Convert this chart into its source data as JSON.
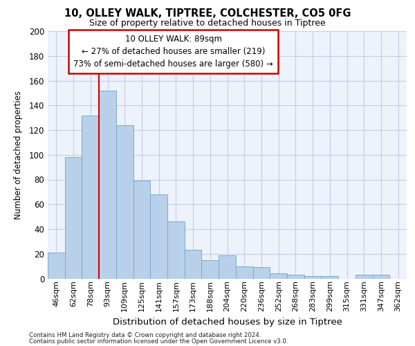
{
  "title_line1": "10, OLLEY WALK, TIPTREE, COLCHESTER, CO5 0FG",
  "title_line2": "Size of property relative to detached houses in Tiptree",
  "xlabel": "Distribution of detached houses by size in Tiptree",
  "ylabel": "Number of detached properties",
  "categories": [
    "46sqm",
    "62sqm",
    "78sqm",
    "93sqm",
    "109sqm",
    "125sqm",
    "141sqm",
    "157sqm",
    "173sqm",
    "188sqm",
    "204sqm",
    "220sqm",
    "236sqm",
    "252sqm",
    "268sqm",
    "283sqm",
    "299sqm",
    "315sqm",
    "331sqm",
    "347sqm",
    "362sqm"
  ],
  "values": [
    21,
    98,
    132,
    152,
    124,
    79,
    68,
    46,
    23,
    15,
    19,
    10,
    9,
    4,
    3,
    2,
    2,
    0,
    3,
    3,
    0
  ],
  "bar_color": "#b8d0ea",
  "bar_edge_color": "#7aaad0",
  "vline_color": "#cc0000",
  "vline_x_index": 3,
  "annotation_text": "10 OLLEY WALK: 89sqm\n← 27% of detached houses are smaller (219)\n73% of semi-detached houses are larger (580) →",
  "annotation_box_color": "#ffffff",
  "annotation_box_edge_color": "#cc0000",
  "ylim": [
    0,
    200
  ],
  "yticks": [
    0,
    20,
    40,
    60,
    80,
    100,
    120,
    140,
    160,
    180,
    200
  ],
  "background_color": "#eef2fb",
  "grid_color": "#c5cce8",
  "footer_line1": "Contains HM Land Registry data © Crown copyright and database right 2024.",
  "footer_line2": "Contains public sector information licensed under the Open Government Licence v3.0."
}
